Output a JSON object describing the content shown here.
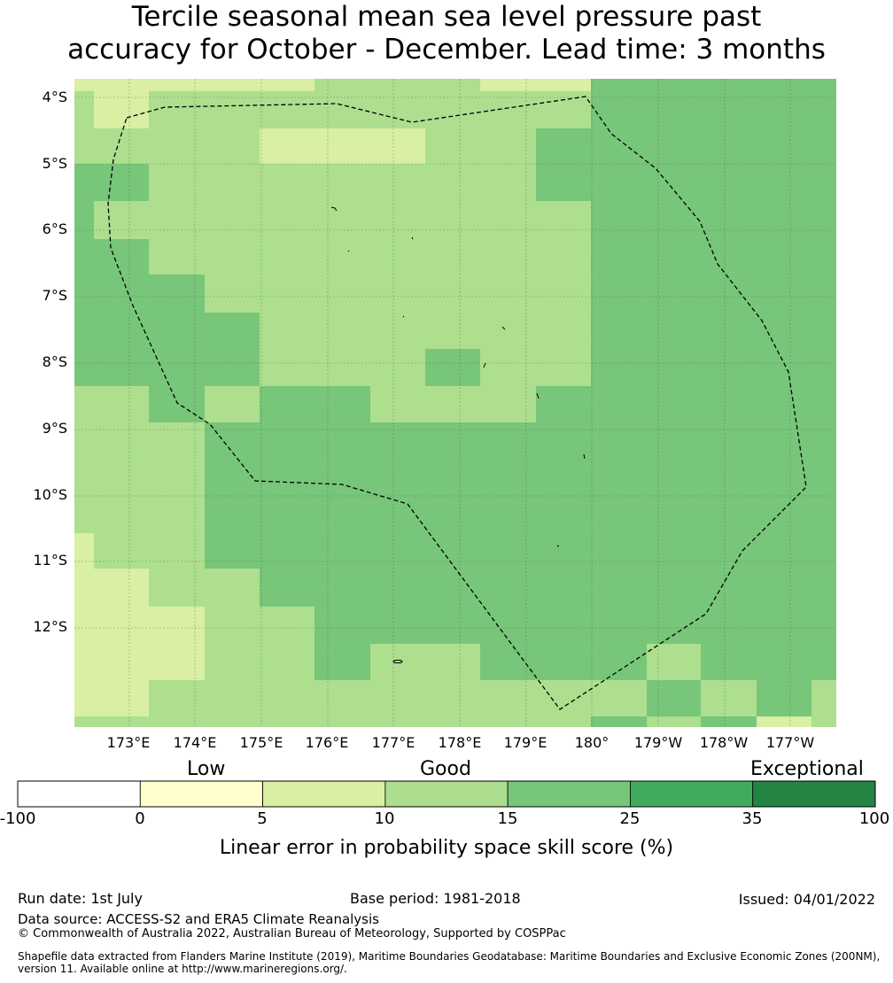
{
  "title_line1": "Tercile seasonal mean sea level pressure past",
  "title_line2": "accuracy for October - December. Lead time: 3 months",
  "colors": {
    "c1": "#d9efa3",
    "c2": "#addf8e",
    "c3": "#78c679",
    "boundary": "#000000",
    "grid": "#4a6a4a"
  },
  "map": {
    "lat_labels": [
      "4°S",
      "5°S",
      "6°S",
      "7°S",
      "8°S",
      "9°S",
      "10°S",
      "11°S",
      "12°S"
    ],
    "lon_labels": [
      "173°E",
      "174°E",
      "175°E",
      "176°E",
      "177°E",
      "178°E",
      "179°E",
      "180°",
      "179°W",
      "178°W",
      "177°W"
    ],
    "layers": [
      {
        "name": "sea-level-pressure-skill-grid",
        "type": "raster"
      },
      {
        "name": "eez-boundary",
        "type": "dashed-polygon"
      },
      {
        "name": "islands",
        "type": "coastline"
      }
    ]
  },
  "colorbar": {
    "categories": [
      "Low",
      "Good",
      "Exceptional"
    ],
    "ticks": [
      "-100",
      "0",
      "5",
      "10",
      "15",
      "25",
      "35",
      "100"
    ],
    "colors": [
      "#ffffff",
      "#ffffcc",
      "#d9f0a3",
      "#addd8e",
      "#78c679",
      "#41ab5d",
      "#238443"
    ],
    "label": "Linear error in probability space skill score (%)"
  },
  "footer": {
    "run_date": "Run date: 1st July",
    "base_period": "Base period: 1981-2018",
    "issued": "Issued: 04/01/2022",
    "data_source": "Data source: ACCESS-S2 and ERA5 Climate Reanalysis",
    "copyright": "© Commonwealth of Australia 2022, Australian Bureau of Meteorology, Supported by COSPPac",
    "shapefile_line1": "Shapefile data extracted from Flanders Marine Institute (2019), Maritime Boundaries Geodatabase: Maritime Boundaries and Exclusive Economic Zones (200NM),",
    "shapefile_line2": "version 11. Available online at http://www.marineregions.org/."
  }
}
